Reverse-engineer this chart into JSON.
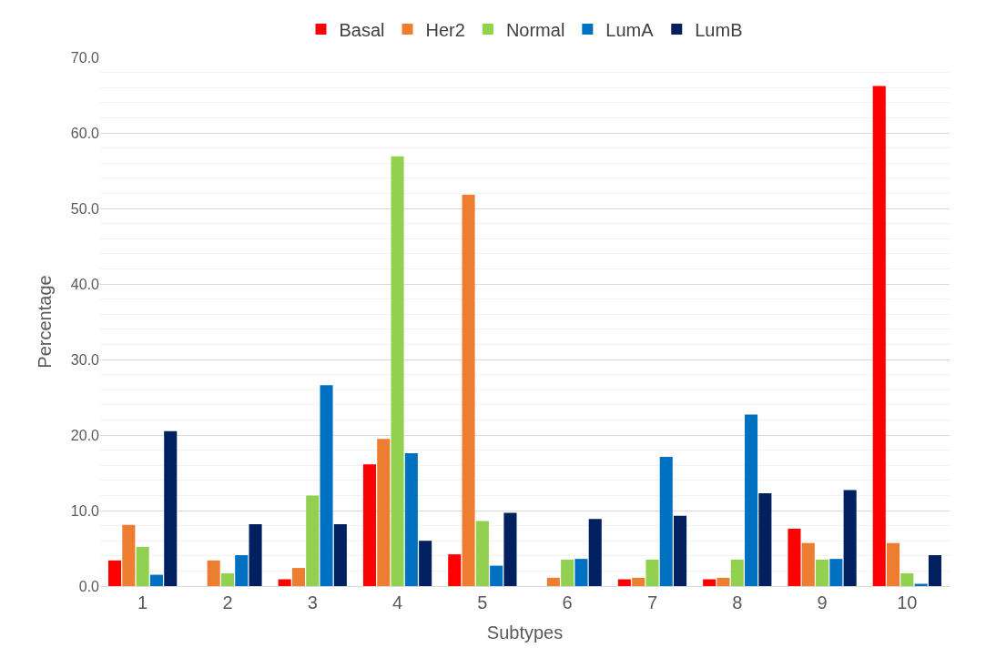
{
  "chart_data": {
    "type": "bar",
    "xlabel": "Subtypes",
    "ylabel": "Percentage",
    "categories": [
      "1",
      "2",
      "3",
      "4",
      "5",
      "6",
      "7",
      "8",
      "9",
      "10"
    ],
    "series": [
      {
        "name": "Basal",
        "color": "#ff0000",
        "values": [
          3.4,
          null,
          0.9,
          16.1,
          4.2,
          null,
          0.9,
          0.9,
          7.6,
          66.2
        ]
      },
      {
        "name": "Her2",
        "color": "#ed7d31",
        "values": [
          8.1,
          3.4,
          2.4,
          19.5,
          51.8,
          1.1,
          1.1,
          1.1,
          5.7,
          5.7
        ]
      },
      {
        "name": "Normal",
        "color": "#92d050",
        "values": [
          5.2,
          1.7,
          12.0,
          56.9,
          8.6,
          3.5,
          3.5,
          3.5,
          3.5,
          1.7
        ]
      },
      {
        "name": "LumA",
        "color": "#0070c0",
        "values": [
          1.5,
          4.1,
          26.6,
          17.6,
          2.7,
          3.6,
          17.1,
          22.7,
          3.6,
          0.3
        ]
      },
      {
        "name": "LumB",
        "color": "#002060",
        "values": [
          20.5,
          8.2,
          8.2,
          6.0,
          9.7,
          8.9,
          9.3,
          12.3,
          12.7,
          4.1
        ]
      }
    ],
    "ylim": [
      0,
      70
    ],
    "yticks": [
      {
        "value": 0,
        "label": "0.0"
      },
      {
        "value": 10,
        "label": "10.0"
      },
      {
        "value": 20,
        "label": "20.0"
      },
      {
        "value": 30,
        "label": "30.0"
      },
      {
        "value": 40,
        "label": "40.0"
      },
      {
        "value": 50,
        "label": "50.0"
      },
      {
        "value": 60,
        "label": "60.0"
      },
      {
        "value": 70,
        "label": "70.0"
      }
    ],
    "grid": "y",
    "legend": "top"
  }
}
